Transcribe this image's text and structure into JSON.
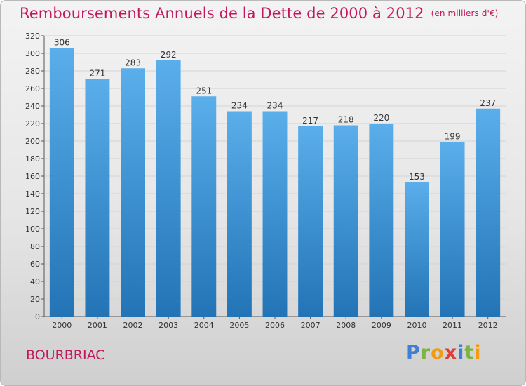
{
  "title": "Remboursements Annuels de la Dette de 2000 à 2012",
  "subtitle": "(en milliers d'€)",
  "city": "BOURBRIAC",
  "brand": {
    "letters": [
      "P",
      "r",
      "o",
      "x",
      "i",
      "t",
      "i"
    ],
    "colors": [
      "#3f7fd6",
      "#7cb342",
      "#f39c12",
      "#e53935",
      "#3f7fd6",
      "#7cb342",
      "#f39c12"
    ]
  },
  "colors": {
    "bar_top": "#5aaeea",
    "bar_bottom": "#2274b6",
    "title": "#c2185b",
    "grid": "#d3d3d3"
  },
  "chart_data": {
    "type": "bar",
    "title": "Remboursements Annuels de la Dette de 2000 à 2012",
    "subtitle": "(en milliers d'€)",
    "categories": [
      "2000",
      "2001",
      "2002",
      "2003",
      "2004",
      "2005",
      "2006",
      "2007",
      "2008",
      "2009",
      "2010",
      "2011",
      "2012"
    ],
    "values": [
      306,
      271,
      283,
      292,
      251,
      234,
      234,
      217,
      218,
      220,
      153,
      199,
      237
    ],
    "ylim": [
      0,
      320
    ],
    "yticks": [
      0,
      20,
      40,
      60,
      80,
      100,
      120,
      140,
      160,
      180,
      200,
      220,
      240,
      260,
      280,
      300,
      320
    ],
    "grid": true,
    "xlabel": "",
    "ylabel": ""
  }
}
